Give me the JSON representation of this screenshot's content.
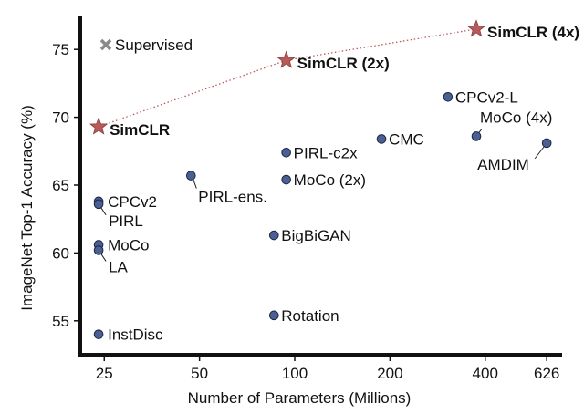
{
  "chart_data": {
    "type": "scatter",
    "xlabel": "Number of Parameters (Millions)",
    "ylabel": "ImageNet Top-1 Accuracy (%)",
    "x_scale": "log",
    "xlim": [
      21,
      700
    ],
    "ylim": [
      52.5,
      77.5
    ],
    "x_ticks": [
      25,
      50,
      100,
      200,
      400,
      626
    ],
    "y_ticks": [
      55,
      60,
      65,
      70,
      75
    ],
    "grid": false,
    "legend": {
      "label": "Supervised",
      "placement": "top-left"
    },
    "colors": {
      "point": "#4a5f94",
      "point_edge": "#1d2540",
      "simclr": "#b85a5a",
      "supervised": "#8a8a8a",
      "line": "#b85a5a"
    },
    "points": [
      {
        "label": "CPCv2",
        "x": 24,
        "y": 63.8
      },
      {
        "label": "PIRL",
        "x": 24,
        "y": 63.6
      },
      {
        "label": "MoCo",
        "x": 24,
        "y": 60.6
      },
      {
        "label": "LA",
        "x": 24,
        "y": 60.2
      },
      {
        "label": "InstDisc",
        "x": 24,
        "y": 54.0
      },
      {
        "label": "PIRL-ens.",
        "x": 47,
        "y": 65.7
      },
      {
        "label": "BigBiGAN",
        "x": 86,
        "y": 61.3
      },
      {
        "label": "Rotation",
        "x": 86,
        "y": 55.4
      },
      {
        "label": "PIRL-c2x",
        "x": 94,
        "y": 67.4
      },
      {
        "label": "MoCo (2x)",
        "x": 94,
        "y": 65.4
      },
      {
        "label": "CMC",
        "x": 188,
        "y": 68.4
      },
      {
        "label": "CPCv2-L",
        "x": 305,
        "y": 71.5
      },
      {
        "label": "MoCo (4x)",
        "x": 375,
        "y": 68.6
      },
      {
        "label": "AMDIM",
        "x": 626,
        "y": 68.1
      }
    ],
    "simclr": [
      {
        "label": "SimCLR",
        "x": 24,
        "y": 69.3
      },
      {
        "label": "SimCLR (2x)",
        "x": 94,
        "y": 74.2
      },
      {
        "label": "SimCLR (4x)",
        "x": 375,
        "y": 76.5
      }
    ]
  }
}
